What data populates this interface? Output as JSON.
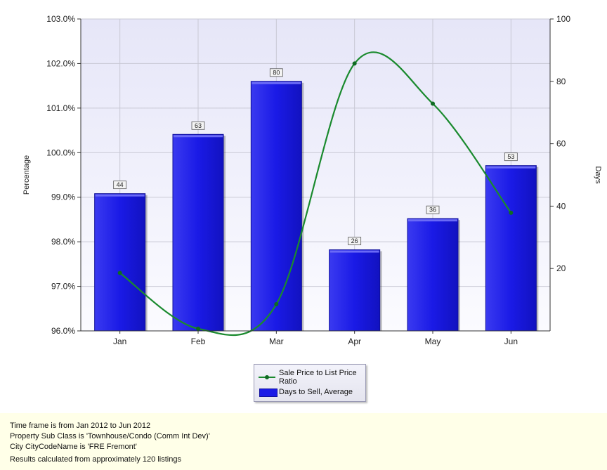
{
  "chart_data": {
    "type": "bar+line",
    "categories": [
      "Jan",
      "Feb",
      "Mar",
      "Apr",
      "May",
      "Jun"
    ],
    "series": [
      {
        "name": "Sale Price to List Price Ratio",
        "type": "line",
        "axis": "left",
        "values": [
          97.3,
          96.05,
          96.6,
          102.0,
          101.1,
          98.65
        ]
      },
      {
        "name": "Days to Sell, Average",
        "type": "bar",
        "axis": "right",
        "values": [
          44,
          63,
          80,
          26,
          36,
          53
        ],
        "data_labels": [
          "44",
          "63",
          "80",
          "26",
          "36",
          "53"
        ]
      }
    ],
    "ylabel": "Percentage",
    "y2label": "Days",
    "ylim": [
      96.0,
      103.0
    ],
    "y2lim": [
      0,
      100
    ],
    "yticks": [
      "96.0%",
      "97.0%",
      "98.0%",
      "99.0%",
      "100.0%",
      "101.0%",
      "102.0%",
      "103.0%"
    ],
    "y2ticks": [
      "20",
      "40",
      "60",
      "80",
      "100"
    ],
    "grid": true,
    "legend_position": "bottom-center"
  },
  "colors": {
    "bar": "#1a1ae6",
    "line": "#1a8a2e",
    "plot_background": "#eef0fc"
  },
  "footer": {
    "line1": "Time frame is from Jan 2012 to Jun 2012",
    "line2": "Property Sub Class is 'Townhouse/Condo (Comm Int Dev)'",
    "line3": "City CityCodeName is 'FRE Fremont'",
    "line4": "Results calculated from approximately 120 listings"
  }
}
